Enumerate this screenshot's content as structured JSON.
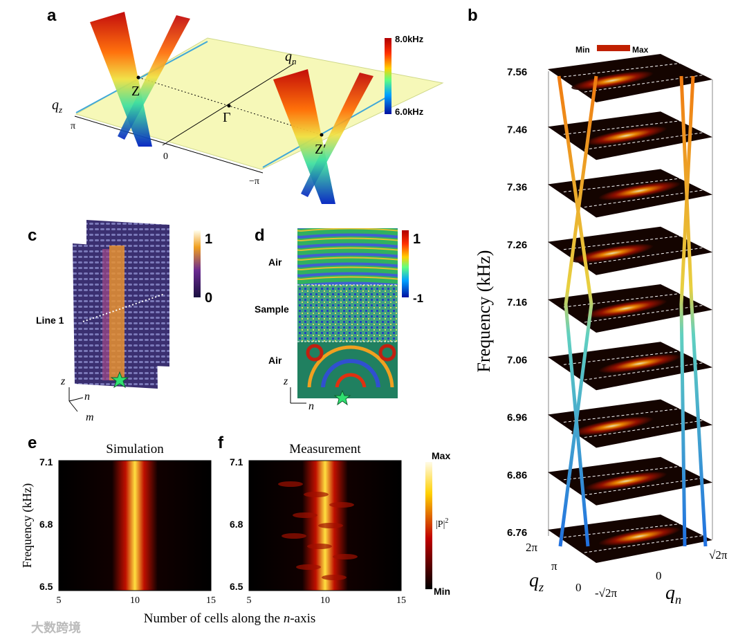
{
  "watermark": "大数跨境",
  "panel_a": {
    "label": "a",
    "qn": [
      "q",
      "n"
    ],
    "qz": [
      "q",
      "z"
    ],
    "points": [
      "Z",
      "Γ",
      "Z′"
    ],
    "qz_ticks": [
      "π",
      "0",
      "−π"
    ],
    "colorbar": [
      "8.0kHz",
      "6.0kHz"
    ]
  },
  "panel_b": {
    "label": "b",
    "colorbar": [
      "Min",
      "Max"
    ],
    "yticks": [
      "7.56",
      "7.46",
      "7.36",
      "7.26",
      "7.16",
      "7.06",
      "6.96",
      "6.86",
      "6.76"
    ],
    "ylabel": "Frequency (kHz)",
    "qz_ticks": [
      "2π",
      "π",
      "0"
    ],
    "qn_ticks": [
      "-√2π",
      "0",
      "√2π"
    ],
    "qz": [
      "q",
      "z"
    ],
    "qn": [
      "q",
      "n"
    ]
  },
  "panel_c": {
    "label": "c",
    "colorbar": [
      "1",
      "0"
    ],
    "annotation": "Line 1",
    "axes": [
      "z",
      "n",
      "m"
    ]
  },
  "panel_d": {
    "label": "d",
    "colorbar": [
      "1",
      "-1"
    ],
    "regions": [
      "Air",
      "Sample",
      "Air"
    ],
    "axes": [
      "z",
      "n"
    ]
  },
  "panel_e": {
    "label": "e",
    "title": "Simulation",
    "ylabel": "Frequency (kHz)",
    "yticks": [
      "7.1",
      "6.8",
      "6.5"
    ],
    "xticks": [
      "5",
      "10",
      "15"
    ]
  },
  "panel_f": {
    "label": "f",
    "title": "Measurement",
    "yticks": [
      "7.1",
      "6.8",
      "6.5"
    ],
    "xticks": [
      "5",
      "10",
      "15"
    ],
    "colorbar": {
      "max": "Max",
      "quantity": "|P|",
      "power": "2",
      "min": "Min"
    }
  },
  "xlabel": [
    "Number of cells along the ",
    "n",
    "-axis"
  ]
}
